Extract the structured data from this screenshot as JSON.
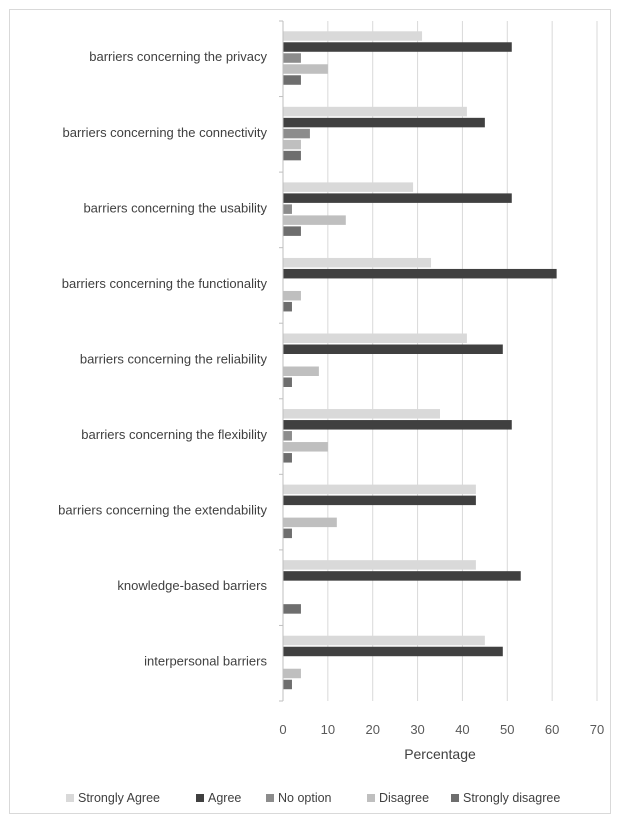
{
  "chart_data": {
    "type": "bar",
    "orientation": "horizontal",
    "title": "",
    "xlabel": "Percentage",
    "ylabel": "",
    "xlim": [
      0,
      70
    ],
    "x_ticks": [
      0,
      10,
      20,
      30,
      40,
      50,
      60,
      70
    ],
    "grid": "vertical",
    "legend_position": "bottom",
    "categories": [
      "barriers concerning the privacy",
      "barriers concerning the connectivity",
      "barriers concerning the usability",
      "barriers concerning the functionality",
      "barriers concerning the reliability",
      "barriers concerning the flexibility",
      "barriers concerning the extendability",
      "knowledge-based barriers",
      "interpersonal barriers"
    ],
    "series": [
      {
        "name": "Strongly Agree",
        "color": "#d9d9d9",
        "values": [
          31,
          41,
          29,
          33,
          41,
          35,
          43,
          43,
          45
        ]
      },
      {
        "name": "Agree",
        "color": "#404040",
        "values": [
          51,
          45,
          51,
          61,
          49,
          51,
          43,
          53,
          49
        ]
      },
      {
        "name": "No option",
        "color": "#8c8c8c",
        "values": [
          4,
          6,
          2,
          0,
          0,
          2,
          0,
          0,
          0
        ]
      },
      {
        "name": "Disagree",
        "color": "#bfbfbf",
        "values": [
          10,
          4,
          14,
          4,
          8,
          10,
          12,
          0,
          4
        ]
      },
      {
        "name": "Strongly disagree",
        "color": "#6e6e6e",
        "values": [
          4,
          4,
          4,
          2,
          2,
          2,
          2,
          4,
          2
        ]
      }
    ]
  }
}
